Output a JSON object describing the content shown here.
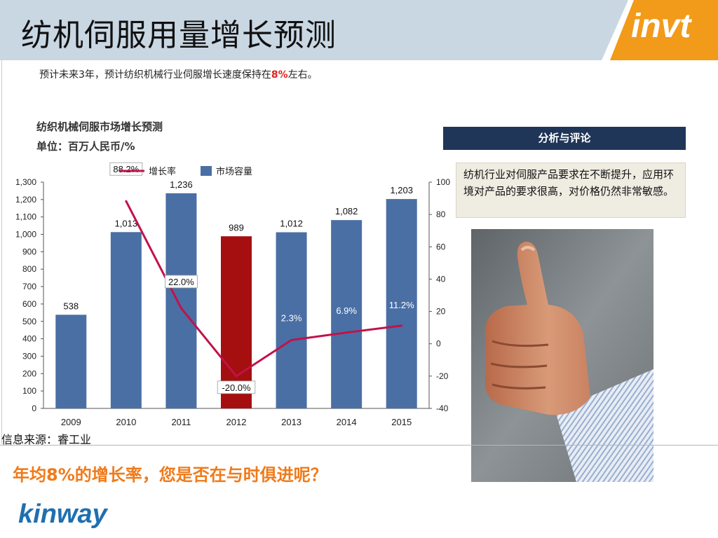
{
  "slide": {
    "title": "纺机伺服用量增长预测",
    "logo_text": "invt",
    "summary_prefix": "预计未来3年，预计纺织机械行业伺服增长速度保持在",
    "summary_highlight": "8%",
    "summary_suffix": "左右。",
    "chart_heading": "纺织机械伺服市场增长预测",
    "chart_unit": "单位：百万人民币/%",
    "analysis_title": "分析与评论",
    "comment": "纺机行业对伺服产品要求在不断提升，应用环境对产品的要求很高，对价格仍然非常敏感。",
    "source": "信息来源：睿工业",
    "tagline": "年均8%的增长率，您是否在与时俱进呢？",
    "footer_logo": "kinway"
  },
  "colors": {
    "bar": "#4a6fa5",
    "highlight_bar": "#a50f0f",
    "growth_line": "#c0134a",
    "header_bg": "#c9d7e3",
    "logo_orange": "#f29a1a",
    "analysis_bg": "#1f3658",
    "tagline": "#f07a1a"
  },
  "chart_data": {
    "type": "bar",
    "categories": [
      "2009",
      "2010",
      "2011",
      "2012",
      "2013",
      "2014",
      "2015"
    ],
    "series": [
      {
        "name": "市场容量",
        "type": "bar",
        "values": [
          538,
          1013,
          1236,
          989,
          1012,
          1082,
          1203
        ],
        "labels": [
          "538",
          "1,013",
          "1,236",
          "989",
          "1,012",
          "1,082",
          "1,203"
        ],
        "highlight_index": 3
      },
      {
        "name": "增长率",
        "type": "line",
        "axis": "right",
        "values": [
          null,
          88.2,
          22.0,
          -20.0,
          2.3,
          6.9,
          11.2
        ],
        "labels": [
          "",
          "88.2%",
          "22.0%",
          "-20.0%",
          "2.3%",
          "6.9%",
          "11.2%"
        ]
      }
    ],
    "ylim_left": [
      0,
      1300
    ],
    "yticks_left": [
      "0",
      "100",
      "200",
      "300",
      "400",
      "500",
      "600",
      "700",
      "800",
      "900",
      "1,000",
      "1,100",
      "1,200",
      "1,300"
    ],
    "ylim_right": [
      -40,
      100
    ],
    "yticks_right": [
      "-40",
      "-20",
      "0",
      "20",
      "40",
      "60",
      "80",
      "100"
    ],
    "legend_position": "top",
    "grid": false
  }
}
